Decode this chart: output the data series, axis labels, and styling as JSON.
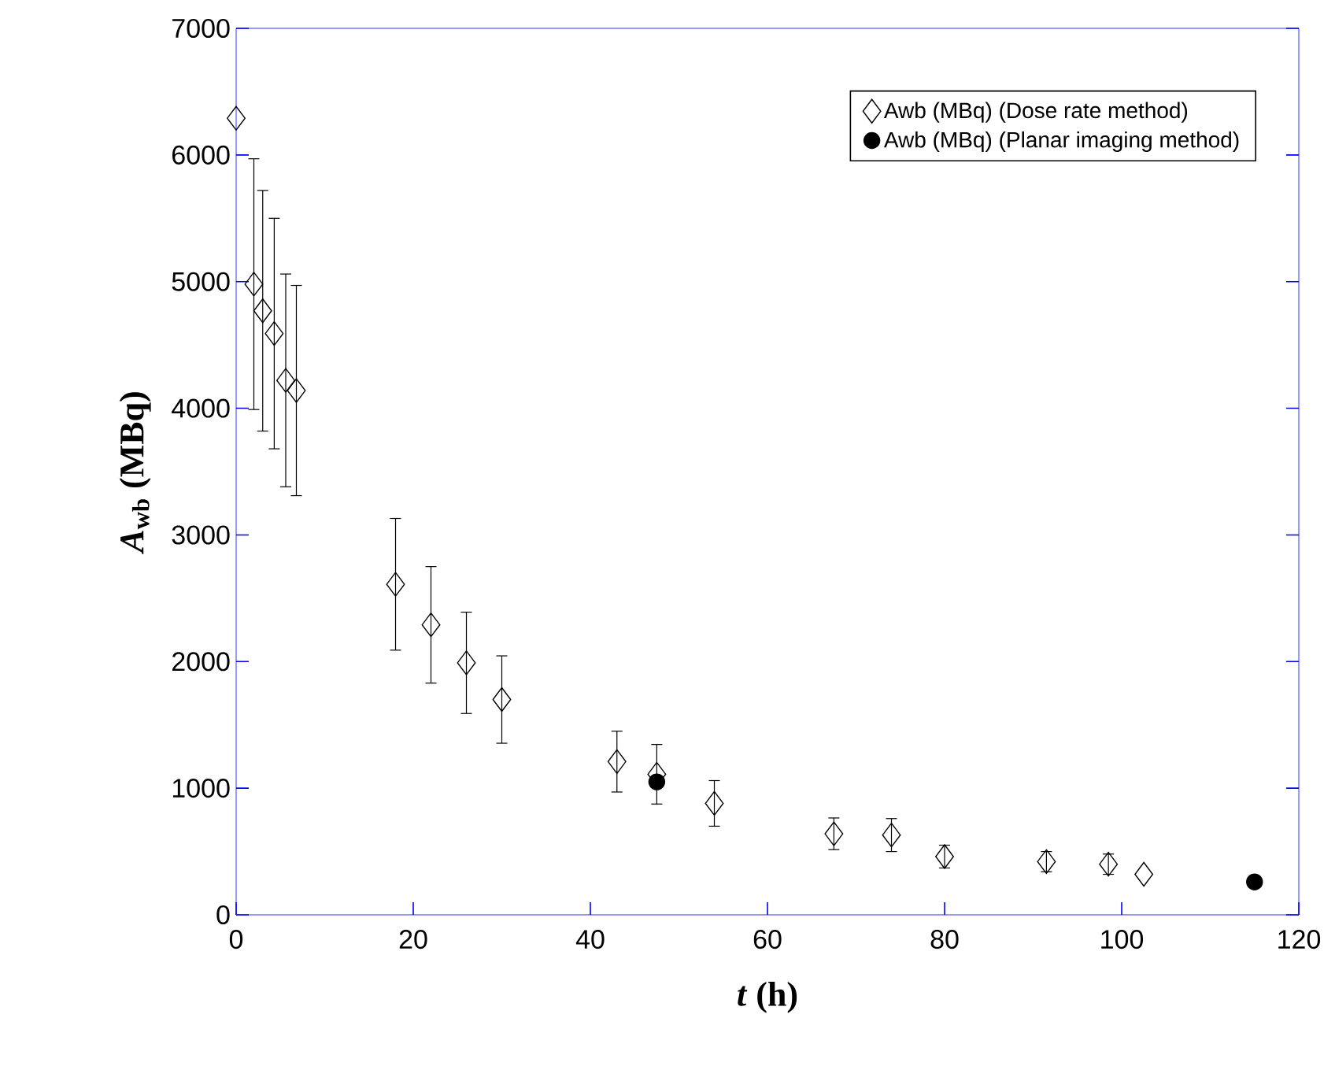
{
  "chart_data": {
    "type": "scatter",
    "xlabel": "*t* (h)",
    "ylabel": "*A*$_{wb}$ (MBq)",
    "xlim": [
      0,
      120
    ],
    "xticks": [
      0,
      20,
      40,
      60,
      80,
      100,
      120
    ],
    "ylim": [
      0,
      7000
    ],
    "yticks": [
      0,
      1000,
      2000,
      3000,
      4000,
      5000,
      6000,
      7000
    ],
    "grid": false,
    "legend": "top right",
    "series": [
      {
        "name": "Awb (MBq) (Dose rate method)",
        "color": "#000000",
        "marker": "diamond",
        "x": [
          0,
          2,
          3,
          4.3,
          5.6,
          6.8,
          18,
          22,
          26,
          30,
          43,
          47.5,
          54,
          67.5,
          74,
          80,
          91.5,
          98.5,
          102.5
        ],
        "values": [
          6290,
          4980,
          4770,
          4590,
          4220,
          4140,
          2610,
          2290,
          1990,
          1700,
          1210,
          1110,
          880,
          640,
          630,
          460,
          420,
          400,
          320
        ],
        "errors": [
          null,
          990,
          950,
          910,
          840,
          830,
          520,
          460,
          400,
          345,
          240,
          235,
          180,
          125,
          130,
          90,
          80,
          80,
          null
        ]
      },
      {
        "name": "Awb (MBq) (Planar imaging method)",
        "color": "#000000",
        "marker": "circle",
        "x": [
          47.5,
          115
        ],
        "values": [
          1050,
          260
        ]
      }
    ]
  }
}
